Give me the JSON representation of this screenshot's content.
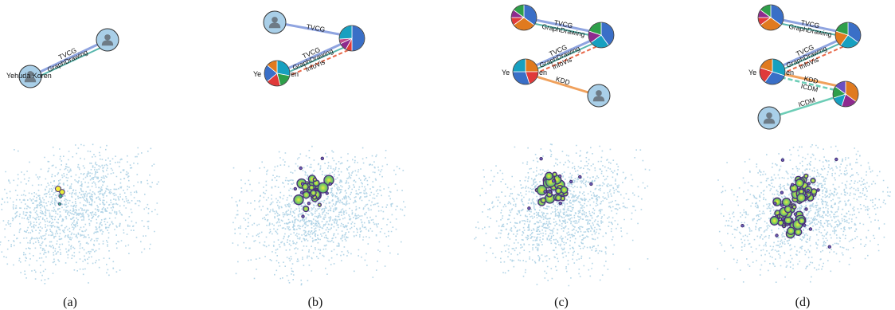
{
  "figure": {
    "panels": [
      {
        "caption": "(a)",
        "node_labels": [
          "Yehuda Koren"
        ],
        "edge_labels": [
          "TVCG",
          "GraphDrawing"
        ]
      },
      {
        "caption": "(b)",
        "node_labels": [
          "Ye",
          "en"
        ],
        "edge_labels": [
          "TVCG",
          "TVCG",
          "GraphDrawing",
          "InfoVis"
        ]
      },
      {
        "caption": "(c)",
        "node_labels": [
          "Ye",
          "en"
        ],
        "edge_labels": [
          "TVCG",
          "GraphDrawing",
          "TVCG",
          "GraphDrawing",
          "InfoVis",
          "KDD"
        ]
      },
      {
        "caption": "(d)",
        "node_labels": [
          "Ye",
          "en"
        ],
        "edge_labels": [
          "TVCG",
          "GraphDrawing",
          "TVCG",
          "GraphDrawing",
          "InfoVis",
          "KDD",
          "ICDM",
          "ICDM"
        ]
      }
    ],
    "colors": {
      "node_fill": "#a9cfe8",
      "person_icon": "#6e7b86",
      "TVCG": "#8fa4e0",
      "GraphDrawing": "#56b5ac",
      "InfoVis": "#e8694a",
      "KDD": "#f0a15c",
      "ICDM": "#6ccdb6",
      "scatter": "#a6cee3",
      "heat_outline": "#4a2d7a",
      "heat_low": "#3fb58a",
      "heat_high": "#f6ee3a"
    }
  }
}
